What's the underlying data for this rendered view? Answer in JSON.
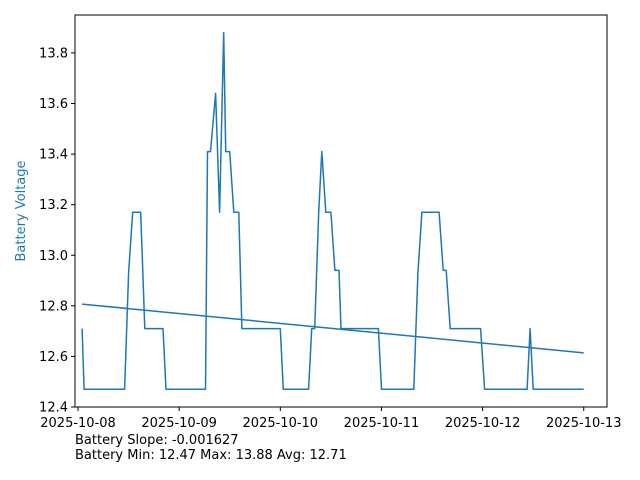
{
  "chart_data": {
    "type": "line",
    "title": "",
    "xlabel": "",
    "ylabel": "Battery Voltage",
    "ylabel_color": "#1f77b4",
    "line_color": "#1f77b4",
    "grid": false,
    "legend": "none",
    "x_range_days": [
      -0.03,
      5.23
    ],
    "ylim": [
      12.4,
      13.95
    ],
    "x_tick_labels": [
      "2025-10-08",
      "2025-10-09",
      "2025-10-10",
      "2025-10-11",
      "2025-10-12",
      "2025-10-13"
    ],
    "y_ticks": [
      12.4,
      12.6,
      12.8,
      13.0,
      13.2,
      13.4,
      13.6,
      13.8
    ],
    "y_tick_labels": [
      "12.4",
      "12.6",
      "12.8",
      "13.0",
      "13.2",
      "13.4",
      "13.6",
      "13.8"
    ],
    "series": [
      {
        "values_x_days": [
          0.04,
          0.06,
          0.46,
          0.5,
          0.54,
          0.62,
          0.66,
          0.84,
          0.87,
          1.26,
          1.28,
          1.31,
          1.36,
          1.4,
          1.44,
          1.46,
          1.5,
          1.54,
          1.59,
          1.62,
          1.66,
          2.0,
          2.03,
          2.28,
          2.31,
          2.34,
          2.38,
          2.41,
          2.45,
          2.5,
          2.54,
          2.58,
          2.6,
          2.64,
          2.97,
          3.0,
          3.32,
          3.36,
          3.4,
          3.57,
          3.61,
          3.64,
          3.68,
          3.98,
          4.02,
          4.44,
          4.47,
          4.5,
          5.0
        ],
        "values_y": [
          12.71,
          12.47,
          12.47,
          12.93,
          13.17,
          13.17,
          12.71,
          12.71,
          12.47,
          12.47,
          13.41,
          13.41,
          13.64,
          13.17,
          13.88,
          13.41,
          13.41,
          13.17,
          13.17,
          12.71,
          12.71,
          12.71,
          12.47,
          12.47,
          12.71,
          12.71,
          13.17,
          13.41,
          13.17,
          13.17,
          12.94,
          12.94,
          12.71,
          12.71,
          12.71,
          12.47,
          12.47,
          12.93,
          13.17,
          13.17,
          12.94,
          12.94,
          12.71,
          12.71,
          12.47,
          12.47,
          12.71,
          12.47,
          12.47
        ]
      },
      {
        "values_x_days": [
          0.04,
          5.0
        ],
        "values_y": [
          12.807,
          12.614
        ]
      }
    ]
  },
  "stats": {
    "slope_text": "Battery Slope: -0.001627",
    "minmax_text": "Battery Min: 12.47 Max: 13.88 Avg: 12.71"
  }
}
